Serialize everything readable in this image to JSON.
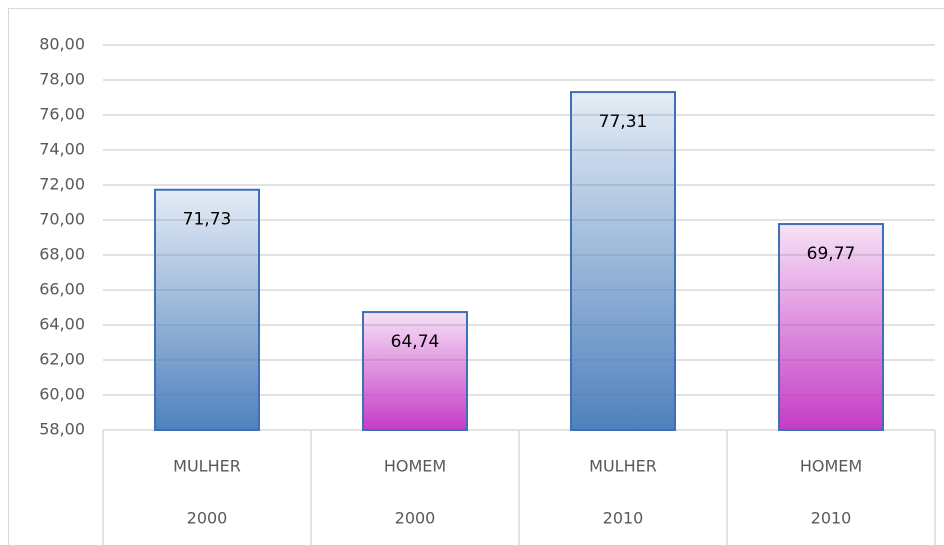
{
  "chart_data": {
    "type": "bar",
    "categories": [
      "MULHER",
      "HOMEM",
      "MULHER",
      "HOMEM"
    ],
    "groups": [
      "2000",
      "2000",
      "2010",
      "2010"
    ],
    "values": [
      71.73,
      64.74,
      77.31,
      69.77
    ],
    "value_labels": [
      "71,73",
      "64,74",
      "77,31",
      "69,77"
    ],
    "colors": [
      "#4f81bd",
      "#c43cc6",
      "#4f81bd",
      "#c43cc6"
    ],
    "ylim": [
      58,
      80
    ],
    "yticks": [
      {
        "value": 58,
        "label": "58,00"
      },
      {
        "value": 60,
        "label": "60,00"
      },
      {
        "value": 62,
        "label": "62,00"
      },
      {
        "value": 64,
        "label": "64,00"
      },
      {
        "value": 66,
        "label": "66,00"
      },
      {
        "value": 68,
        "label": "68,00"
      },
      {
        "value": 70,
        "label": "70,00"
      },
      {
        "value": 72,
        "label": "72,00"
      },
      {
        "value": 74,
        "label": "74,00"
      },
      {
        "value": 76,
        "label": "76,00"
      },
      {
        "value": 78,
        "label": "78,00"
      },
      {
        "value": 80,
        "label": "80,00"
      }
    ],
    "grid": true
  }
}
